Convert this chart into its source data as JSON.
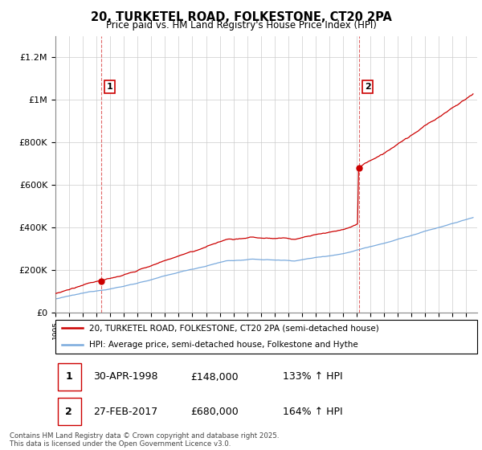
{
  "title": "20, TURKETEL ROAD, FOLKESTONE, CT20 2PA",
  "subtitle": "Price paid vs. HM Land Registry's House Price Index (HPI)",
  "ylim": [
    0,
    1300000
  ],
  "xlim_start": 1995.0,
  "xlim_end": 2025.8,
  "purchase1_date": 1998.33,
  "purchase1_price": 148000,
  "purchase2_date": 2017.17,
  "purchase2_price": 680000,
  "red_line_color": "#cc0000",
  "blue_line_color": "#7aaadd",
  "annotation_box_color": "#cc0000",
  "grid_color": "#cccccc",
  "legend_line1": "20, TURKETEL ROAD, FOLKESTONE, CT20 2PA (semi-detached house)",
  "legend_line2": "HPI: Average price, semi-detached house, Folkestone and Hythe",
  "table_row1": [
    "1",
    "30-APR-1998",
    "£148,000",
    "133% ↑ HPI"
  ],
  "table_row2": [
    "2",
    "27-FEB-2017",
    "£680,000",
    "164% ↑ HPI"
  ],
  "footnote": "Contains HM Land Registry data © Crown copyright and database right 2025.\nThis data is licensed under the Open Government Licence v3.0."
}
